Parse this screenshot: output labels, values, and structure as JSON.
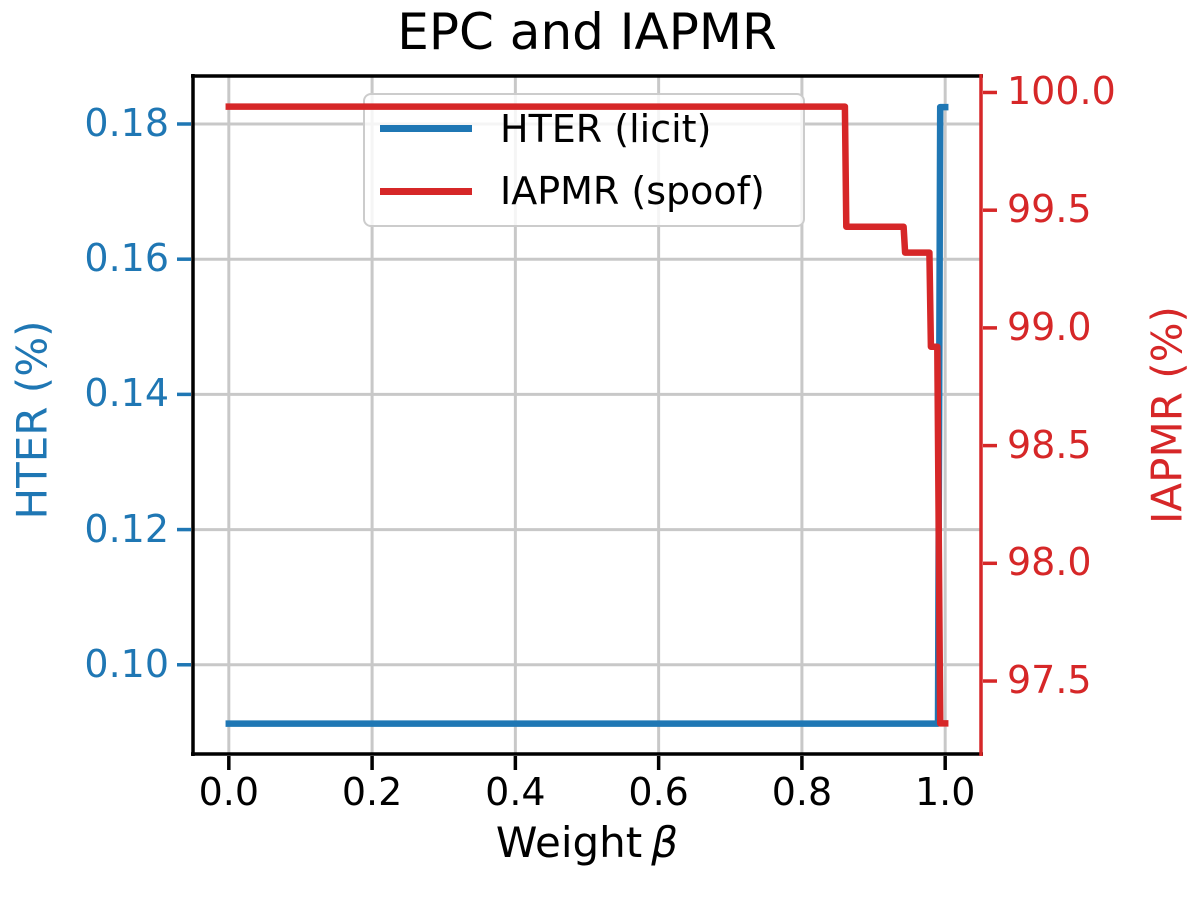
{
  "figure": {
    "title": "EPC and IAPMR"
  },
  "legend": {
    "entries": [
      {
        "label": "HTER (licit)",
        "color": "#1f77b4"
      },
      {
        "label": "IAPMR (spoof)",
        "color": "#d62728"
      }
    ]
  },
  "chart_data": {
    "type": "line",
    "title": "EPC and IAPMR",
    "xlabel": "Weight β",
    "xlabel_prefix": "Weight",
    "xlabel_symbol": "β",
    "grid": true,
    "legend_position": "upper center inside plot",
    "colors": {
      "grid": "#c8c8c8",
      "spines": "#000000",
      "right_spine": "#d62728",
      "background": "#ffffff"
    },
    "axes": {
      "x": {
        "label": "Weight β",
        "lim": [
          -0.05,
          1.05
        ],
        "tick_values": [
          0.0,
          0.2,
          0.4,
          0.6,
          0.8,
          1.0
        ],
        "tick_labels": [
          "0.0",
          "0.2",
          "0.4",
          "0.6",
          "0.8",
          "1.0"
        ],
        "color": "#000000"
      },
      "y_left": {
        "label": "HTER (%)",
        "lim": [
          0.0868,
          0.1871
        ],
        "tick_values": [
          0.1,
          0.12,
          0.14,
          0.16,
          0.18
        ],
        "tick_labels": [
          "0.10",
          "0.12",
          "0.14",
          "0.16",
          "0.18"
        ],
        "color": "#1f77b4"
      },
      "y_right": {
        "label": "IAPMR (%)",
        "lim": [
          97.19,
          100.07
        ],
        "tick_values": [
          97.5,
          98.0,
          98.5,
          99.0,
          99.5,
          100.0
        ],
        "tick_labels": [
          "97.5",
          "98.0",
          "98.5",
          "99.0",
          "99.5",
          "100.0"
        ],
        "color": "#d62728"
      }
    },
    "series": [
      {
        "name": "HTER (licit)",
        "axis": "left",
        "color": "#1f77b4",
        "x": [
          0.0,
          0.99,
          0.993,
          1.0
        ],
        "y": [
          0.0913,
          0.0913,
          0.1825,
          0.1825
        ]
      },
      {
        "name": "IAPMR (spoof)",
        "axis": "right",
        "color": "#d62728",
        "x": [
          0.0,
          0.86,
          0.862,
          0.942,
          0.944,
          0.978,
          0.98,
          0.989,
          0.993,
          1.0
        ],
        "y": [
          99.94,
          99.94,
          99.43,
          99.43,
          99.32,
          99.32,
          98.92,
          98.92,
          97.32,
          97.32
        ]
      }
    ]
  }
}
